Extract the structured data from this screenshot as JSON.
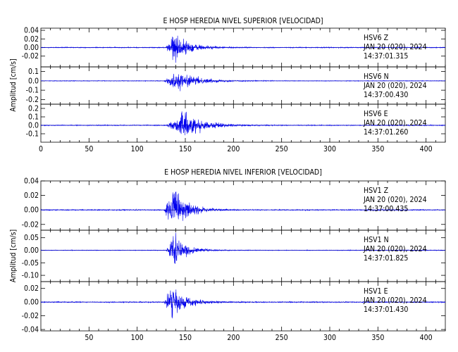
{
  "chart_data": [
    {
      "type": "line",
      "title": "E HOSP HEREDIA NIVEL SUPERIOR [VELOCIDAD]",
      "ylabel": "Amplitud [cm/s]",
      "xlim": [
        0,
        420
      ],
      "x_ticks": [
        "0",
        "50",
        "100",
        "150",
        "200",
        "250",
        "300",
        "350",
        "400"
      ],
      "x_tick_values": [
        0,
        50,
        100,
        150,
        200,
        250,
        300,
        350,
        400
      ],
      "traces": [
        {
          "station": "HSV6",
          "component": "Z",
          "date": "JAN 20 (020), 2024",
          "time": "14:37:01.315",
          "ylim": [
            -0.045,
            0.045
          ],
          "yticks": [
            0.04,
            0.02,
            0.0,
            -0.02
          ],
          "ytick_labels": [
            "0.04",
            "0.02",
            "0.00",
            "-0.02"
          ],
          "onset": 130,
          "peak_time": 137,
          "peak": 0.042,
          "decay": 16,
          "noise": 0.0012
        },
        {
          "station": "HSV6",
          "component": "N",
          "date": "JAN 20 (020), 2024",
          "time": "14:37:00.430",
          "ylim": [
            -0.25,
            0.15
          ],
          "yticks": [
            0.1,
            0.0,
            -0.1,
            -0.2
          ],
          "ytick_labels": [
            "0.1",
            "0.0",
            "-0.1",
            "-0.2"
          ],
          "onset": 128,
          "peak_time": 142,
          "peak": 0.12,
          "decay": 20,
          "noise": 0.004
        },
        {
          "station": "HSV6",
          "component": "E",
          "date": "JAN 20 (020), 2024",
          "time": "14:37:01.260",
          "ylim": [
            -0.2,
            0.25
          ],
          "yticks": [
            0.2,
            0.1,
            0.0,
            -0.1
          ],
          "ytick_labels": [
            "0.2",
            "0.1",
            "0.0",
            "-0.1"
          ],
          "onset": 130,
          "peak_time": 150,
          "peak": 0.19,
          "decay": 18,
          "noise": 0.006
        }
      ]
    },
    {
      "type": "line",
      "title": "E HOSP HEREDIA NIVEL INFERIOR [VELOCIDAD]",
      "ylabel": "Amplitud [cm/s]",
      "xlim": [
        0,
        420
      ],
      "x_ticks": [
        "50",
        "100",
        "150",
        "200",
        "250",
        "300",
        "350",
        "400"
      ],
      "x_tick_values": [
        50,
        100,
        150,
        200,
        250,
        300,
        350,
        400
      ],
      "traces": [
        {
          "station": "HSV1",
          "component": "Z",
          "date": "JAN 20 (020), 2024",
          "time": "14:37:00.435",
          "ylim": [
            -0.028,
            0.04
          ],
          "yticks": [
            0.04,
            0.02,
            0.0,
            -0.02
          ],
          "ytick_labels": [
            "0.04",
            "0.02",
            "0.00",
            "-0.02"
          ],
          "onset": 128,
          "peak_time": 137,
          "peak": 0.038,
          "decay": 14,
          "noise": 0.0008
        },
        {
          "station": "HSV1",
          "component": "N",
          "date": "JAN 20 (020), 2024",
          "time": "14:37:01.825",
          "ylim": [
            -0.125,
            0.08
          ],
          "yticks": [
            0.05,
            0.0,
            -0.05,
            -0.1
          ],
          "ytick_labels": [
            "0.05",
            "0.00",
            "-0.05",
            "-0.10"
          ],
          "onset": 130,
          "peak_time": 139,
          "peak": 0.07,
          "decay": 12,
          "noise": 0.0015
        },
        {
          "station": "HSV1",
          "component": "E",
          "date": "JAN 20 (020), 2024",
          "time": "14:37:01.430",
          "ylim": [
            -0.042,
            0.03
          ],
          "yticks": [
            0.02,
            0.0,
            -0.02,
            -0.04
          ],
          "ytick_labels": [
            "0.02",
            "0.00",
            "-0.02",
            "-0.04"
          ],
          "onset": 128,
          "peak_time": 136,
          "peak": 0.028,
          "decay": 15,
          "noise": 0.0009
        }
      ]
    }
  ],
  "colors": {
    "trace": "#0000ee",
    "axis": "#000000"
  }
}
